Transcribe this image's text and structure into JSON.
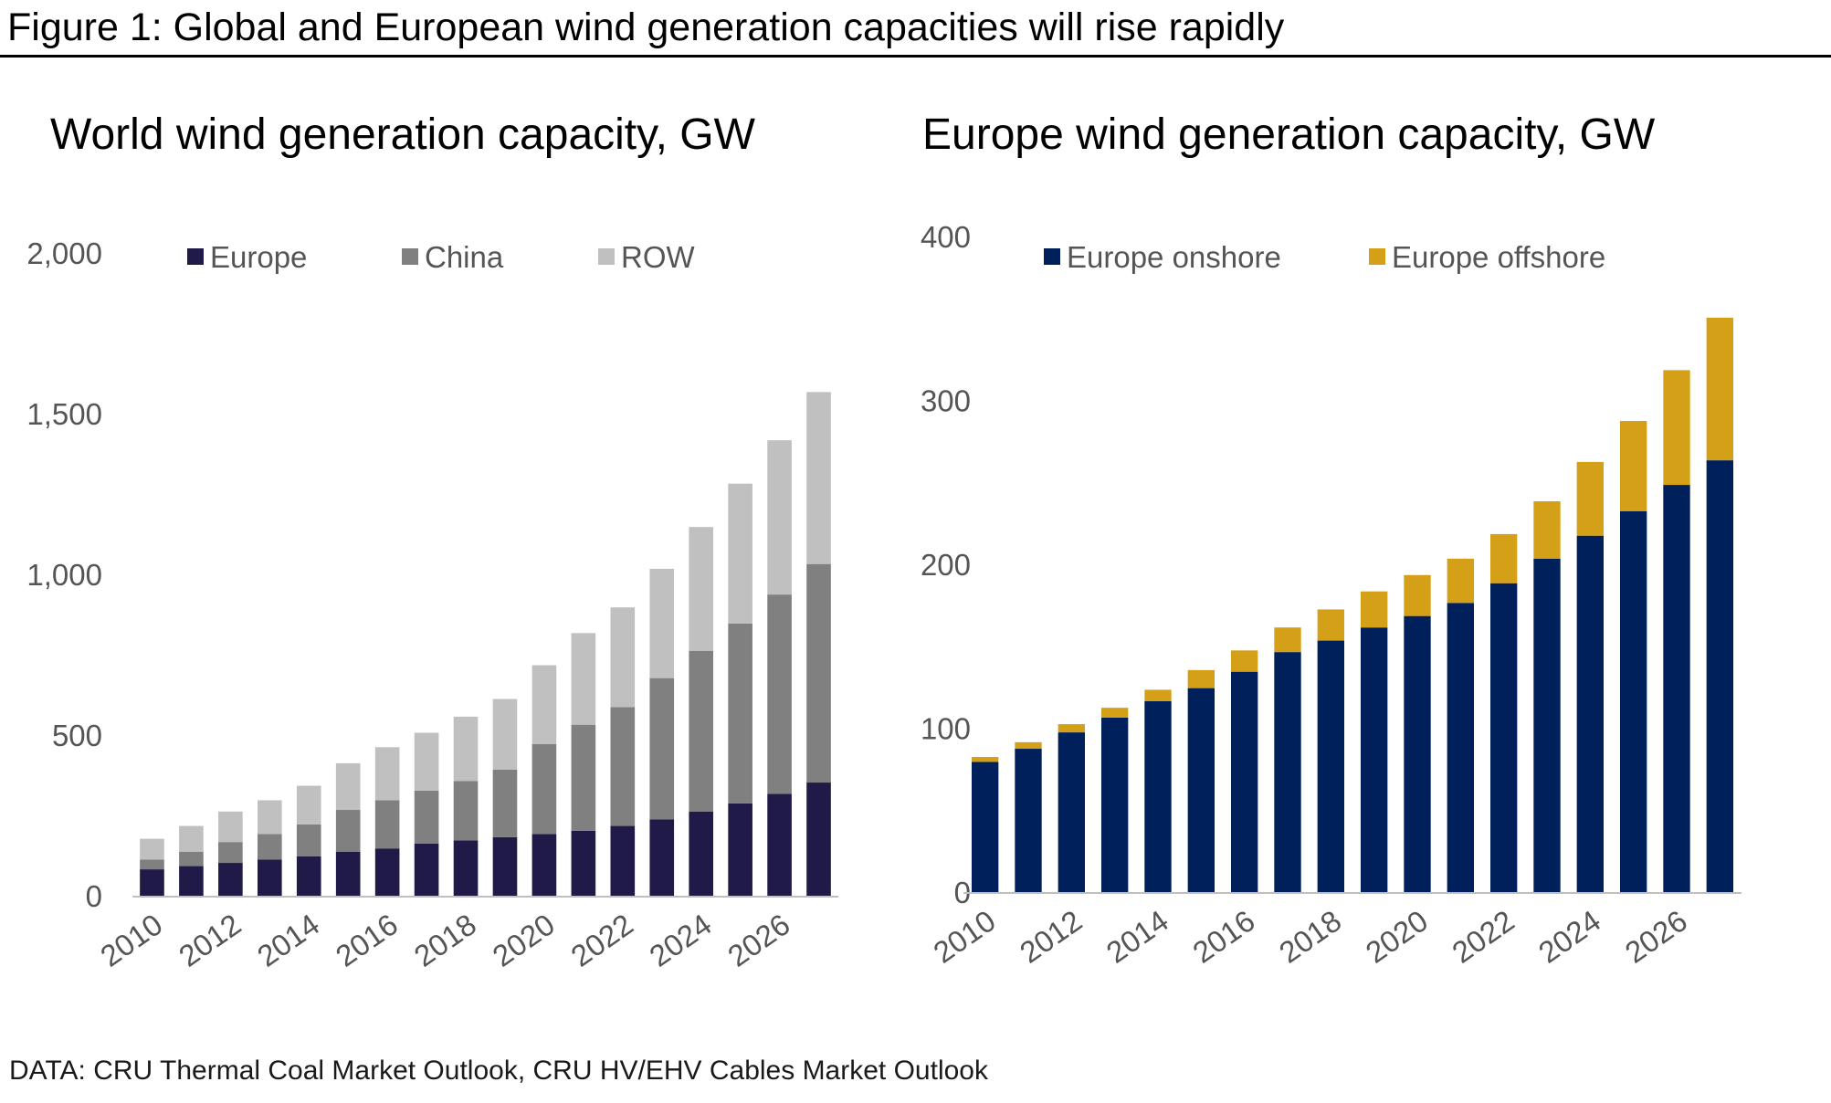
{
  "figure_title": "Figure 1: Global and European wind generation capacities will rise rapidly",
  "source_note": "DATA: CRU Thermal Coal Market Outlook, CRU HV/EHV Cables Market Outlook",
  "chart_data": [
    {
      "type": "bar",
      "stacked": true,
      "title": "World wind generation capacity, GW",
      "xlabel": "",
      "ylabel": "",
      "ylim": [
        0,
        2000
      ],
      "y_ticks": [
        0,
        500,
        1000,
        1500,
        2000
      ],
      "y_tick_labels": [
        "0",
        "500",
        "1,000",
        "1,500",
        "2,000"
      ],
      "categories": [
        "2010",
        "2011",
        "2012",
        "2013",
        "2014",
        "2015",
        "2016",
        "2017",
        "2018",
        "2019",
        "2020",
        "2021",
        "2022",
        "2023",
        "2024",
        "2025",
        "2026",
        "2027"
      ],
      "x_tick_labels": [
        "2010",
        "2012",
        "2014",
        "2016",
        "2018",
        "2020",
        "2022",
        "2024",
        "2026"
      ],
      "legend_position": "top",
      "series": [
        {
          "name": "Europe",
          "color": "#1f1a47",
          "values": [
            85,
            95,
            105,
            115,
            125,
            140,
            150,
            165,
            175,
            185,
            195,
            205,
            220,
            240,
            265,
            290,
            320,
            355
          ]
        },
        {
          "name": "China",
          "color": "#808080",
          "values": [
            30,
            45,
            65,
            80,
            100,
            130,
            150,
            165,
            185,
            210,
            280,
            330,
            370,
            440,
            500,
            560,
            620,
            680
          ]
        },
        {
          "name": "ROW",
          "color": "#c0c0c0",
          "values": [
            65,
            80,
            95,
            105,
            120,
            145,
            165,
            180,
            200,
            220,
            245,
            285,
            310,
            340,
            385,
            435,
            480,
            535
          ]
        }
      ]
    },
    {
      "type": "bar",
      "stacked": true,
      "title": "Europe wind generation capacity, GW",
      "xlabel": "",
      "ylabel": "",
      "ylim": [
        0,
        400
      ],
      "y_ticks": [
        0,
        100,
        200,
        300,
        400
      ],
      "y_tick_labels": [
        "0",
        "100",
        "200",
        "300",
        "400"
      ],
      "categories": [
        "2010",
        "2011",
        "2012",
        "2013",
        "2014",
        "2015",
        "2016",
        "2017",
        "2018",
        "2019",
        "2020",
        "2021",
        "2022",
        "2023",
        "2024",
        "2025",
        "2026",
        "2027"
      ],
      "x_tick_labels": [
        "2010",
        "2012",
        "2014",
        "2016",
        "2018",
        "2020",
        "2022",
        "2024",
        "2026"
      ],
      "legend_position": "top",
      "series": [
        {
          "name": "Europe onshore",
          "color": "#00205b",
          "values": [
            80,
            88,
            98,
            107,
            117,
            125,
            135,
            147,
            154,
            162,
            169,
            177,
            189,
            204,
            218,
            233,
            249,
            264
          ]
        },
        {
          "name": "Europe offshore",
          "color": "#d4a017",
          "values": [
            3,
            4,
            5,
            6,
            7,
            11,
            13,
            15,
            19,
            22,
            25,
            27,
            30,
            35,
            45,
            55,
            70,
            87
          ]
        }
      ]
    }
  ]
}
